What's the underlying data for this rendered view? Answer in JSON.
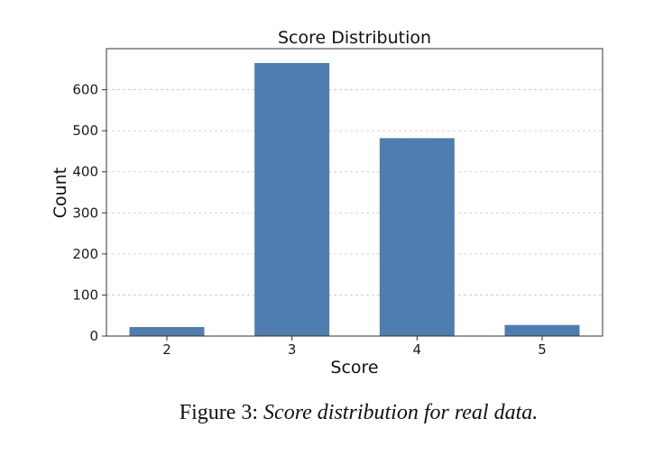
{
  "chart_data": {
    "type": "bar",
    "title": "Score Distribution",
    "xlabel": "Score",
    "ylabel": "Count",
    "categories": [
      "2",
      "3",
      "4",
      "5"
    ],
    "values": [
      22,
      665,
      482,
      27
    ],
    "ylim": [
      0,
      700
    ],
    "yticks": [
      0,
      100,
      200,
      300,
      400,
      500,
      600
    ],
    "grid": "horizontal dashed",
    "legend": "none",
    "bar_color": "#4f7db0"
  },
  "caption": {
    "label": "Figure 3:",
    "text": "Score distribution for real data."
  }
}
